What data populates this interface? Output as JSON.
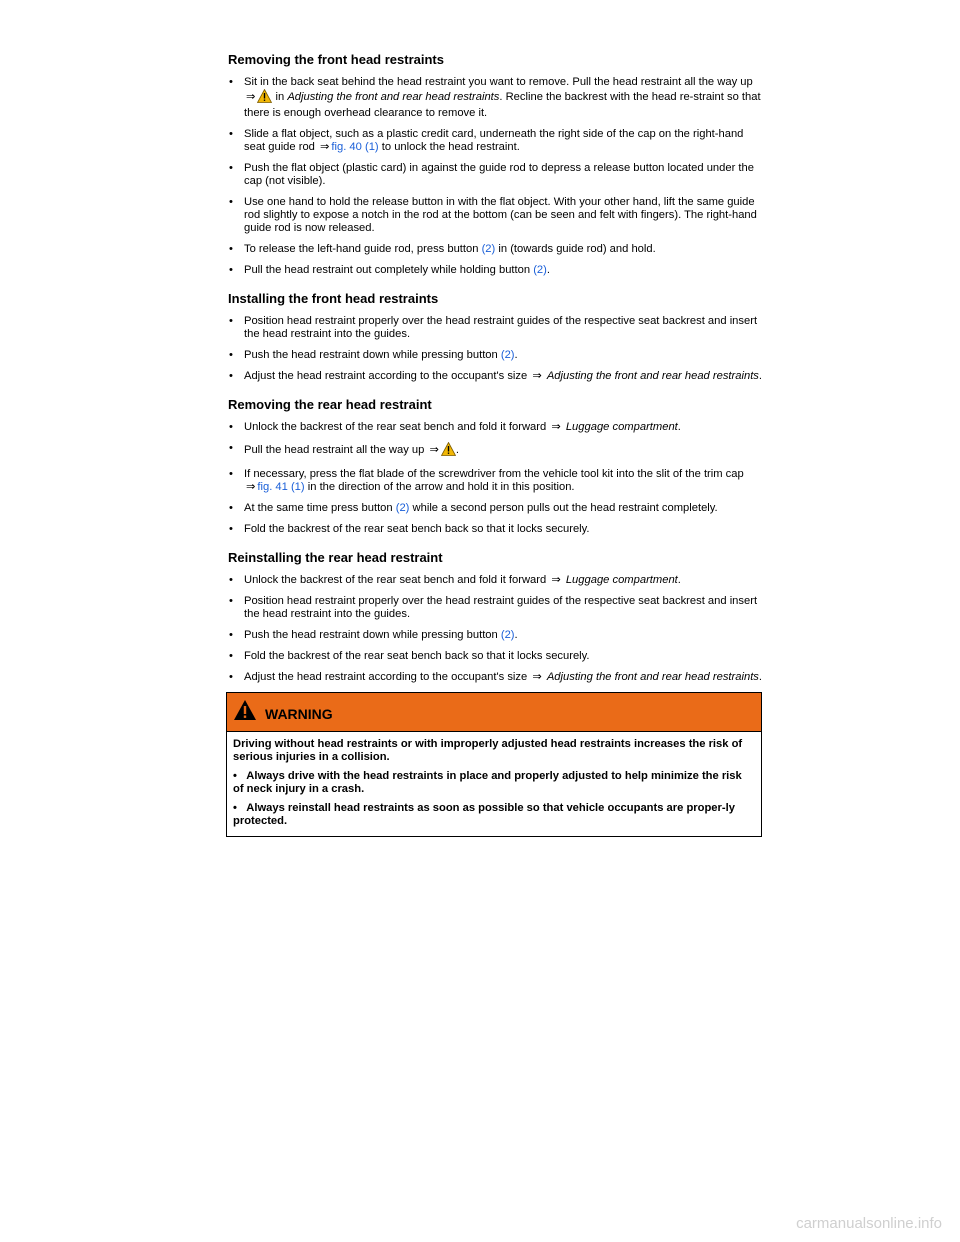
{
  "sections": {
    "front_remove": {
      "title": "Removing the front head restraints",
      "i1": {
        "a": "Sit in the back seat behind the head restraint you want to remove. Pull the head restraint all the way up",
        "b": "in",
        "c": "Adjusting the front and rear head restraints",
        "d": ". Recline the backrest with the head re-straint so that there is enough overhead clearance to remove it."
      },
      "i2": {
        "a": "Slide a flat object, such as a plastic credit card, underneath the right side of the cap on the right-hand seat guide rod",
        "link": "fig. 40 (1)",
        "b": "to unlock the head restraint."
      },
      "i3": "Push the flat object (plastic card) in against the guide rod to depress a release button located under the cap (not visible).",
      "i4": "Use one hand to hold the release button in with the flat object. With your other hand, lift the same guide rod slightly to expose a notch in the rod at the bottom (can be seen and felt with fingers). The right-hand guide rod is now released.",
      "i5": {
        "a": "To release the left-hand guide rod, press button",
        "link": "(2)",
        "b": "in (towards guide rod) and hold."
      },
      "i6": {
        "a": "Pull the head restraint out completely while holding button",
        "link": "(2)",
        "b": "."
      }
    },
    "front_install": {
      "title": "Installing the front head restraints",
      "i1": "Position head restraint properly over the head restraint guides of the respective seat backrest and insert the head restraint into the guides.",
      "i2": {
        "a": "Push the head restraint down while pressing button",
        "link": "(2)",
        "b": "."
      },
      "i3": {
        "a": "Adjust the head restraint according to the occupant's size",
        "b": "Adjusting the front and rear head restraints",
        "c": "."
      }
    },
    "rear_remove": {
      "title": "Removing the rear head restraint",
      "i1": {
        "a": "Unlock the backrest of the rear seat bench and fold it forward",
        "b": "Luggage compartment",
        "c": "."
      },
      "i2": {
        "a": "Pull the head restraint all the way up",
        "b": "."
      },
      "i3": {
        "a": "If necessary, press the flat blade of the screwdriver from the vehicle tool kit into the slit of the trim cap",
        "link": "fig. 41 (1)",
        "b": "in the direction of the arrow and hold it in this position."
      },
      "i4": {
        "a": "At the same time press button",
        "link": "(2)",
        "b": "while a second person pulls out the head restraint completely."
      },
      "i5": "Fold the backrest of the rear seat bench back so that it locks securely."
    },
    "rear_install": {
      "title": "Reinstalling the rear head restraint",
      "i1": {
        "a": "Unlock the backrest of the rear seat bench and fold it forward",
        "b": "Luggage compartment",
        "c": "."
      },
      "i2": "Position head restraint properly over the head restraint guides of the respective seat backrest and insert the head restraint into the guides.",
      "i3": {
        "a": "Push the head restraint down while pressing button",
        "link": "(2)",
        "b": "."
      },
      "i4": "Fold the backrest of the rear seat bench back so that it locks securely.",
      "i5": {
        "a": "Adjust the head restraint according to the occupant's size",
        "b": "Adjusting the front and rear head restraints",
        "c": "."
      }
    }
  },
  "warning": {
    "title": "WARNING",
    "p1": "Driving without head restraints or with improperly adjusted head restraints increases the risk of serious injuries in a collision.",
    "p2": "Always drive with the head restraints in place and properly adjusted to help minimize the risk of neck injury in a crash.",
    "p3": "Always reinstall head restraints as soon as possible so that vehicle occupants are proper-ly protected."
  },
  "footer": "carmanualsonline.info",
  "symbols": {
    "bullet": "•",
    "arrow": "⇒"
  },
  "colors": {
    "link": "#1a5fd8",
    "warning_header": "#ea6b18"
  },
  "icons": {
    "warning": "warning-triangle-icon"
  }
}
